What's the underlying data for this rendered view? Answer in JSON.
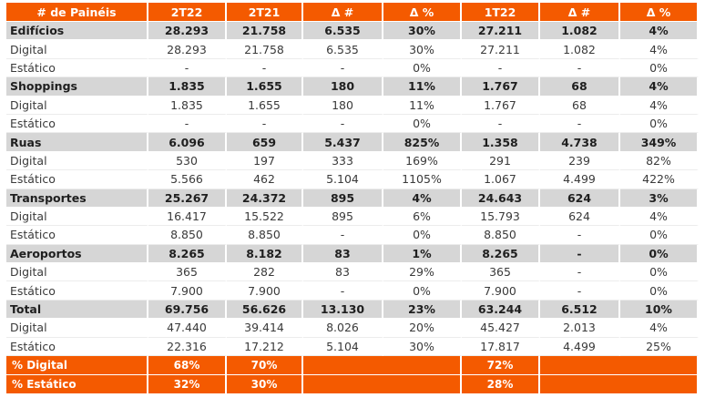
{
  "headers": [
    "# de Painéis",
    "2T22",
    "2T21",
    "Δ #",
    "Δ %",
    "1T22",
    "Δ #",
    "Δ %"
  ],
  "rows": [
    {
      "type": "sec",
      "cells": [
        "Edifícios",
        "28.293",
        "21.758",
        "6.535",
        "30%",
        "27.211",
        "1.082",
        "4%"
      ]
    },
    {
      "type": "sub",
      "cells": [
        "Digital",
        "28.293",
        "21.758",
        "6.535",
        "30%",
        "27.211",
        "1.082",
        "4%"
      ]
    },
    {
      "type": "sub",
      "cells": [
        "Estático",
        "-",
        "-",
        "-",
        "0%",
        "-",
        "-",
        "0%"
      ]
    },
    {
      "type": "sec",
      "cells": [
        "Shoppings",
        "1.835",
        "1.655",
        "180",
        "11%",
        "1.767",
        "68",
        "4%"
      ]
    },
    {
      "type": "sub",
      "cells": [
        "Digital",
        "1.835",
        "1.655",
        "180",
        "11%",
        "1.767",
        "68",
        "4%"
      ]
    },
    {
      "type": "sub",
      "cells": [
        "Estático",
        "-",
        "-",
        "-",
        "0%",
        "-",
        "-",
        "0%"
      ]
    },
    {
      "type": "sec",
      "cells": [
        "Ruas",
        "6.096",
        "659",
        "5.437",
        "825%",
        "1.358",
        "4.738",
        "349%"
      ]
    },
    {
      "type": "sub",
      "cells": [
        "Digital",
        "530",
        "197",
        "333",
        "169%",
        "291",
        "239",
        "82%"
      ]
    },
    {
      "type": "sub",
      "cells": [
        "Estático",
        "5.566",
        "462",
        "5.104",
        "1105%",
        "1.067",
        "4.499",
        "422%"
      ]
    },
    {
      "type": "sec",
      "cells": [
        "Transportes",
        "25.267",
        "24.372",
        "895",
        "4%",
        "24.643",
        "624",
        "3%"
      ]
    },
    {
      "type": "sub",
      "cells": [
        "Digital",
        "16.417",
        "15.522",
        "895",
        "6%",
        "15.793",
        "624",
        "4%"
      ]
    },
    {
      "type": "sub",
      "cells": [
        "Estático",
        "8.850",
        "8.850",
        "-",
        "0%",
        "8.850",
        "-",
        "0%"
      ]
    },
    {
      "type": "sec",
      "cells": [
        "Aeroportos",
        "8.265",
        "8.182",
        "83",
        "1%",
        "8.265",
        "-",
        "0%"
      ]
    },
    {
      "type": "sub",
      "cells": [
        "Digital",
        "365",
        "282",
        "83",
        "29%",
        "365",
        "-",
        "0%"
      ]
    },
    {
      "type": "sub",
      "cells": [
        "Estático",
        "7.900",
        "7.900",
        "-",
        "0%",
        "7.900",
        "-",
        "0%"
      ]
    },
    {
      "type": "sec",
      "cells": [
        "Total",
        "69.756",
        "56.626",
        "13.130",
        "23%",
        "63.244",
        "6.512",
        "10%"
      ]
    },
    {
      "type": "sub",
      "cells": [
        "Digital",
        "47.440",
        "39.414",
        "8.026",
        "20%",
        "45.427",
        "2.013",
        "4%"
      ]
    },
    {
      "type": "sub",
      "cells": [
        "Estático",
        "22.316",
        "17.212",
        "5.104",
        "30%",
        "17.817",
        "4.499",
        "25%"
      ]
    }
  ],
  "footer": [
    {
      "label": "% Digital",
      "v2T22": "68%",
      "v2T21": "70%",
      "v1T22": "72%"
    },
    {
      "label": "% Estático",
      "v2T22": "32%",
      "v2T21": "30%",
      "v1T22": "28%"
    }
  ],
  "colors": {
    "header": "#f45a00",
    "section": "#d6d6d6",
    "footer": "#f45a00"
  }
}
